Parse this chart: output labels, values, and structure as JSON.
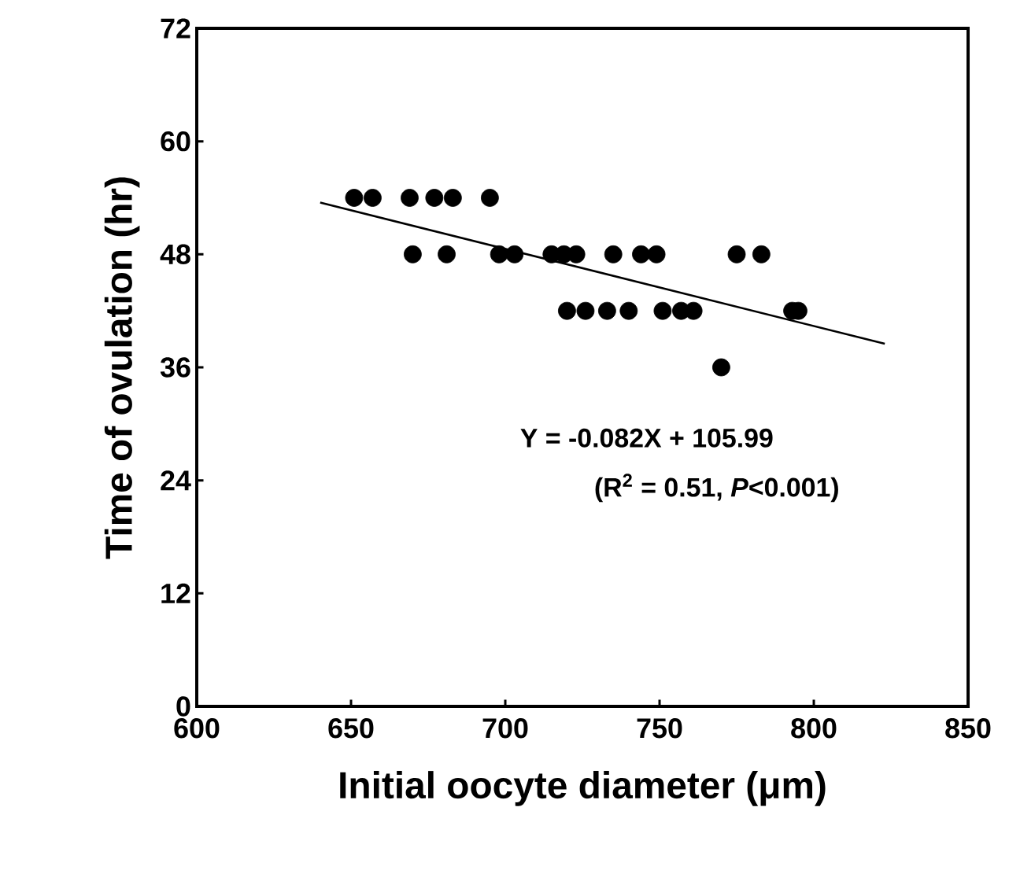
{
  "chart_data": {
    "type": "scatter",
    "xlabel": "Initial oocyte diameter (μm)",
    "ylabel": "Time of ovulation (hr)",
    "xlim": [
      600,
      850
    ],
    "xticks": [
      600,
      650,
      700,
      750,
      800,
      850
    ],
    "ylim": [
      0,
      72
    ],
    "yticks": [
      0,
      12,
      24,
      36,
      48,
      60,
      72
    ],
    "grid": false,
    "series": [
      {
        "color": "#000000",
        "marker": "circle",
        "x": [
          651,
          657,
          669,
          677,
          683,
          695,
          670,
          681,
          698,
          703,
          715,
          719,
          723,
          735,
          744,
          749,
          775,
          783,
          720,
          726,
          733,
          740,
          751,
          757,
          761,
          793,
          795,
          770
        ],
        "values": [
          54,
          54,
          54,
          54,
          54,
          54,
          48,
          48,
          48,
          48,
          48,
          48,
          48,
          48,
          48,
          48,
          48,
          48,
          42,
          42,
          42,
          42,
          42,
          42,
          42,
          42,
          42,
          36
        ]
      },
      {
        "type": "line",
        "color": "#000000",
        "marker": "none",
        "x": [
          640,
          823
        ],
        "values": [
          53.5,
          38.5
        ]
      }
    ],
    "annotations": [
      "Y = -0.082X + 105.99",
      "(R$^{2}$ = 0.51, *P*<0.001)"
    ]
  }
}
